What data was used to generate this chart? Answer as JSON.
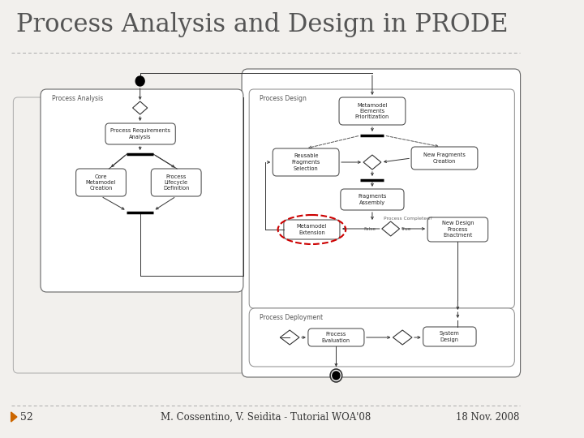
{
  "title": "Process Analysis and Design in PRODE",
  "title_fontsize": 22,
  "title_font": "serif",
  "bg_color": "#f2f0ed",
  "slide_number": "52",
  "footer_center": "M. Cossentino, V. Seidita - Tutorial WOA'08",
  "footer_right": "18 Nov. 2008",
  "left_panel_label": "Process Analysis",
  "right_panel_label": "Process Design",
  "bottom_panel_label": "Process Deployment"
}
